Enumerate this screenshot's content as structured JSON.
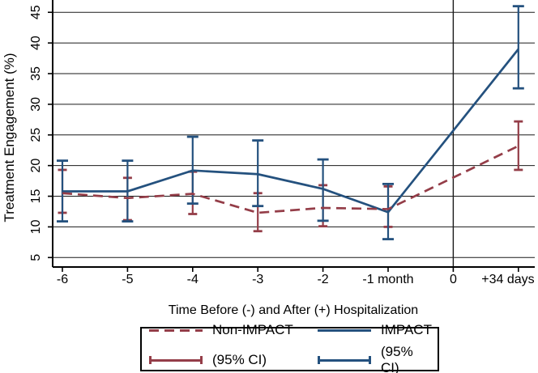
{
  "chart_data": {
    "type": "line",
    "title": "",
    "xlabel": "Time Before (-) and After (+) Hospitalization",
    "ylabel": "Treatment Engagement (%)",
    "x_tick_labels": [
      "-6",
      "-5",
      "-4",
      "-3",
      "-2",
      "-1 month",
      "0",
      "+34 days"
    ],
    "y_ticks": [
      5,
      10,
      15,
      20,
      25,
      30,
      35,
      40,
      45
    ],
    "ylim": [
      5,
      47
    ],
    "grid": "horizontal",
    "reference_line_at_x_index": 6,
    "colors": {
      "grid": "#1a1a1a",
      "axis": "#000000",
      "text": "#000000",
      "background": "#ffffff"
    },
    "series": [
      {
        "name": "Non-IMPACT",
        "color": "#943d48",
        "line_style": "dashed",
        "values": [
          15.5,
          14.7,
          15.4,
          12.3,
          13.1,
          12.9,
          null,
          23.2
        ],
        "ci_low": [
          12.3,
          11.1,
          12.1,
          9.3,
          10.1,
          10.0,
          null,
          19.3
        ],
        "ci_high": [
          19.3,
          18.0,
          19.0,
          15.5,
          16.8,
          16.6,
          null,
          27.2
        ]
      },
      {
        "name": "IMPACT",
        "color": "#24517e",
        "line_style": "solid",
        "values": [
          15.8,
          15.8,
          19.2,
          18.6,
          16.2,
          12.4,
          null,
          39.0
        ],
        "ci_low": [
          10.9,
          10.9,
          13.8,
          13.4,
          11.0,
          8.0,
          null,
          32.6
        ],
        "ci_high": [
          20.8,
          20.8,
          24.7,
          24.1,
          21.0,
          17.0,
          null,
          46.0
        ]
      }
    ],
    "legend": {
      "position": "bottom-center",
      "border": true,
      "items": [
        {
          "label": "Non-IMPACT",
          "series": "Non-IMPACT",
          "swatch": "dashed-line"
        },
        {
          "label": "IMPACT",
          "series": "IMPACT",
          "swatch": "solid-line"
        },
        {
          "label": "(95% CI)",
          "series": "Non-IMPACT",
          "swatch": "error-bar"
        },
        {
          "label": "(95% CI)",
          "series": "IMPACT",
          "swatch": "error-bar"
        }
      ]
    }
  }
}
